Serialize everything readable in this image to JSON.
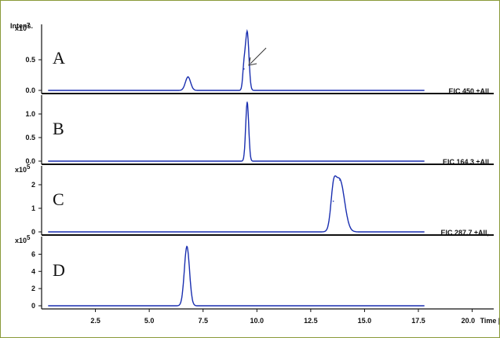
{
  "chart_data": {
    "type": "line",
    "y_title": "Intens.",
    "x_axis": {
      "label": "Time [min]",
      "range": [
        0,
        21.0
      ],
      "ticks": [
        2.5,
        5.0,
        7.5,
        10.0,
        12.5,
        15.0,
        17.5,
        20.0
      ],
      "tick_labels": [
        "2.5",
        "5.0",
        "7.5",
        "10.0",
        "12.5",
        "15.0",
        "17.5",
        "20.0"
      ]
    },
    "panels": [
      {
        "letter": "A",
        "multiplier": "x10^7",
        "eic_label": "",
        "y_range": [
          0,
          1.0
        ],
        "y_ticks": [
          0.0,
          0.5
        ],
        "y_tick_labels": [
          "0.0",
          "0.5"
        ],
        "peaks": [
          {
            "rt": 6.8,
            "height": 0.22,
            "width": 0.12
          },
          {
            "rt": 9.55,
            "height": 0.95,
            "width": 0.08
          },
          {
            "rt": 9.4,
            "height": 0.35,
            "width": 0.06
          }
        ],
        "arrow_annotation": true
      },
      {
        "letter": "B",
        "multiplier": "",
        "eic_label": "EIC 450 ±All",
        "y_range": [
          0,
          1.3
        ],
        "y_ticks": [
          0.0,
          0.5,
          1.0
        ],
        "y_tick_labels": [
          "0.0",
          "0.5",
          "1.0"
        ],
        "peaks": [
          {
            "rt": 9.55,
            "height": 1.25,
            "width": 0.07
          }
        ]
      },
      {
        "letter": "C",
        "multiplier": "x10^5",
        "eic_label": "EIC 164.3 ±All",
        "y_range": [
          0,
          2.6
        ],
        "y_ticks": [
          0,
          1,
          2
        ],
        "y_tick_labels": [
          "0",
          "1",
          "2"
        ],
        "peaks": [
          {
            "rt": 13.85,
            "height": 2.2,
            "width": 0.22
          },
          {
            "rt": 13.55,
            "height": 1.3,
            "width": 0.12
          }
        ]
      },
      {
        "letter": "D",
        "multiplier": "x10^5",
        "eic_label": "EIC 287.7 ±All,",
        "y_range": [
          0,
          7.5
        ],
        "y_ticks": [
          0,
          2,
          4,
          6
        ],
        "y_tick_labels": [
          "0",
          "2",
          "4",
          "6"
        ],
        "peaks": [
          {
            "rt": 6.75,
            "height": 6.9,
            "width": 0.12
          }
        ]
      }
    ],
    "line_color": "#1a2fb0"
  }
}
